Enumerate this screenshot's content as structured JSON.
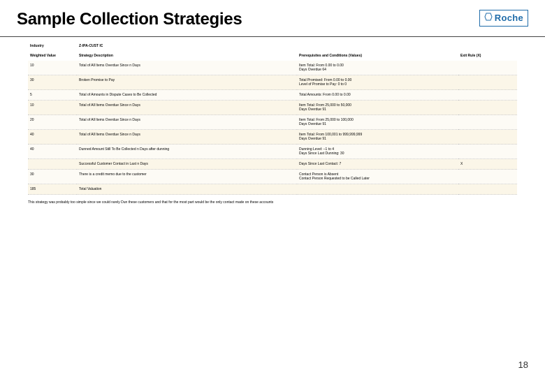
{
  "page": {
    "title": "Sample Collection Strategies",
    "page_number": "18",
    "logo": {
      "text": "Roche",
      "border_color": "#1f6ca9",
      "text_color": "#1f6ca9"
    }
  },
  "table": {
    "header": {
      "industry_label": "Industry",
      "industry_value": "Z-IPA-CUST IC"
    },
    "columns": {
      "wv": "Weighted Value",
      "desc": "Strategy Description",
      "cond": "Prerequisites and Conditions (Values)",
      "exit": "Exit Rule (X)"
    },
    "rows": [
      {
        "wv": "10",
        "desc": "Total of All Items Overdue Since n Days",
        "cond": "Item Total: From 0.00 to 0.00\nDays Overdue 64",
        "exit": ""
      },
      {
        "wv": "30",
        "desc": "Broken Promise to Pay",
        "cond": "Total Promised: From 0.00 to 0.00\nLevel of Promise to Pay: 0 to 0",
        "exit": ""
      },
      {
        "wv": "5",
        "desc": "Total of Amounts in Dispute Cases to Be Collected",
        "cond": "Total Amounts: From 0.00 to 0.00",
        "exit": ""
      },
      {
        "wv": "10",
        "desc": "Total of All Items Overdue Since n Days",
        "cond": "Item Total: From 25,000 to 50,000\nDays Overdue 91",
        "exit": ""
      },
      {
        "wv": "20",
        "desc": "Total of All Items Overdue Since n Days",
        "cond": "Item Total: From 25,000 to 100,000\nDays Overdue 91",
        "exit": ""
      },
      {
        "wv": "40",
        "desc": "Total of All Items Overdue Since n Days",
        "cond": "Item Total: From 100,001 to 999,999,999\nDays Overdue 91",
        "exit": ""
      },
      {
        "wv": "40",
        "desc": "Dunned Amount Still To Be Collected n Days after dunning",
        "cond": "Dunning Level: –1 to 4\nDays Since Last Dunning: 30",
        "exit": ""
      },
      {
        "wv": "",
        "desc": "Successful Customer Contact in Last n Days",
        "cond": "Days Since Last Contact: 7",
        "exit": "X"
      },
      {
        "wv": "30",
        "desc": "There is a credit memo due to the customer",
        "cond": "Contact Person is Absent\nContact Person Requested to be Called Later",
        "exit": ""
      },
      {
        "wv": "185",
        "desc": "Total Valuation",
        "cond": "",
        "exit": ""
      }
    ],
    "footnote": "This strategy was probably too simple since we could rarely Dun these customers and that for the most part would be the only contact made on these accounts"
  },
  "style": {
    "row_bg_odd": "#fdfbf5",
    "row_bg_even": "#fbf6e8",
    "font_size_table_pt": 5,
    "font_size_title_pt": 24,
    "font_size_pagenum_pt": 13,
    "border_color": "#cccccc"
  }
}
